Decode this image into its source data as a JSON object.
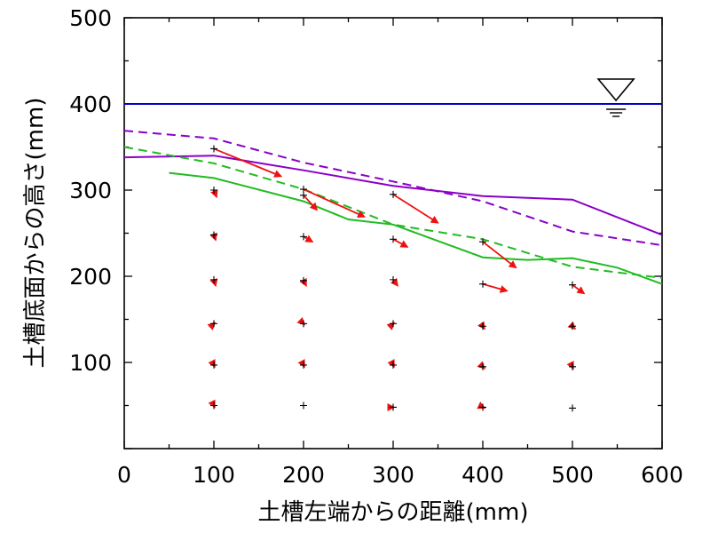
{
  "chart_data": {
    "type": "line",
    "title": "",
    "xlabel": "土槽左端からの距離(mm)",
    "ylabel": "土槽底面からの高さ(mm)",
    "xlim": [
      0,
      600
    ],
    "ylim": [
      0,
      500
    ],
    "x_ticks": [
      0,
      100,
      200,
      300,
      400,
      500,
      600
    ],
    "y_ticks": [
      100,
      200,
      300,
      400,
      500
    ],
    "x_tick_labels": [
      "0",
      "100",
      "200",
      "300",
      "400",
      "500",
      "600"
    ],
    "y_tick_labels": [
      "100",
      "200",
      "300",
      "400",
      "500"
    ],
    "grid": false,
    "colors": {
      "water": "#0000cc",
      "purple": "#8a00c8",
      "green": "#22bb22",
      "arrow": "#ee1111",
      "marker": "#000000"
    },
    "water_level": {
      "y": 400,
      "symbol_x": 510
    },
    "series": [
      {
        "style": "purple-solid",
        "points": [
          [
            0,
            338
          ],
          [
            100,
            340
          ],
          [
            200,
            323
          ],
          [
            300,
            305
          ],
          [
            400,
            293
          ],
          [
            500,
            289
          ],
          [
            600,
            248
          ]
        ]
      },
      {
        "style": "purple-dashed",
        "points": [
          [
            0,
            369
          ],
          [
            100,
            360
          ],
          [
            200,
            332
          ],
          [
            300,
            310
          ],
          [
            400,
            287
          ],
          [
            500,
            252
          ],
          [
            600,
            236
          ]
        ]
      },
      {
        "style": "green-solid",
        "points": [
          [
            50,
            320
          ],
          [
            100,
            314
          ],
          [
            200,
            287
          ],
          [
            250,
            266
          ],
          [
            300,
            260
          ],
          [
            400,
            222
          ],
          [
            450,
            219
          ],
          [
            500,
            221
          ],
          [
            550,
            210
          ],
          [
            600,
            191
          ]
        ]
      },
      {
        "style": "green-dashed",
        "points": [
          [
            0,
            350
          ],
          [
            100,
            331
          ],
          [
            200,
            301
          ],
          [
            300,
            260
          ],
          [
            400,
            243
          ],
          [
            500,
            211
          ],
          [
            600,
            198
          ]
        ]
      }
    ],
    "markers": [
      [
        100,
        348
      ],
      [
        100,
        300
      ],
      [
        100,
        248
      ],
      [
        100,
        196
      ],
      [
        100,
        145
      ],
      [
        100,
        97
      ],
      [
        100,
        50
      ],
      [
        200,
        301
      ],
      [
        200,
        294
      ],
      [
        200,
        246
      ],
      [
        200,
        195
      ],
      [
        200,
        145
      ],
      [
        200,
        97
      ],
      [
        200,
        50
      ],
      [
        300,
        295
      ],
      [
        300,
        243
      ],
      [
        300,
        196
      ],
      [
        300,
        145
      ],
      [
        300,
        97
      ],
      [
        300,
        48
      ],
      [
        400,
        240
      ],
      [
        400,
        191
      ],
      [
        400,
        142
      ],
      [
        400,
        95
      ],
      [
        400,
        48
      ],
      [
        500,
        190
      ],
      [
        500,
        142
      ],
      [
        500,
        95
      ],
      [
        500,
        47
      ]
    ],
    "arrows": [
      [
        100,
        348,
        175,
        316
      ],
      [
        100,
        300,
        103,
        292
      ],
      [
        100,
        248,
        102,
        242
      ],
      [
        100,
        196,
        102,
        189
      ],
      [
        100,
        145,
        101,
        146
      ],
      [
        100,
        97,
        101,
        95
      ],
      [
        100,
        50,
        101,
        48
      ],
      [
        200,
        301,
        268,
        269
      ],
      [
        200,
        294,
        215,
        277
      ],
      [
        200,
        246,
        210,
        240
      ],
      [
        200,
        195,
        203,
        189
      ],
      [
        200,
        145,
        201,
        144
      ],
      [
        200,
        97,
        201,
        95
      ],
      [
        300,
        295,
        350,
        262
      ],
      [
        300,
        243,
        316,
        234
      ],
      [
        300,
        196,
        305,
        189
      ],
      [
        300,
        145,
        301,
        146
      ],
      [
        300,
        97,
        301,
        95
      ],
      [
        300,
        48,
        301,
        48
      ],
      [
        400,
        240,
        437,
        210
      ],
      [
        400,
        191,
        427,
        183
      ],
      [
        400,
        142,
        402,
        139
      ],
      [
        400,
        95,
        402,
        93
      ],
      [
        400,
        48,
        402,
        47
      ],
      [
        500,
        190,
        513,
        180
      ],
      [
        500,
        142,
        503,
        139
      ],
      [
        500,
        95,
        501,
        93
      ]
    ]
  }
}
